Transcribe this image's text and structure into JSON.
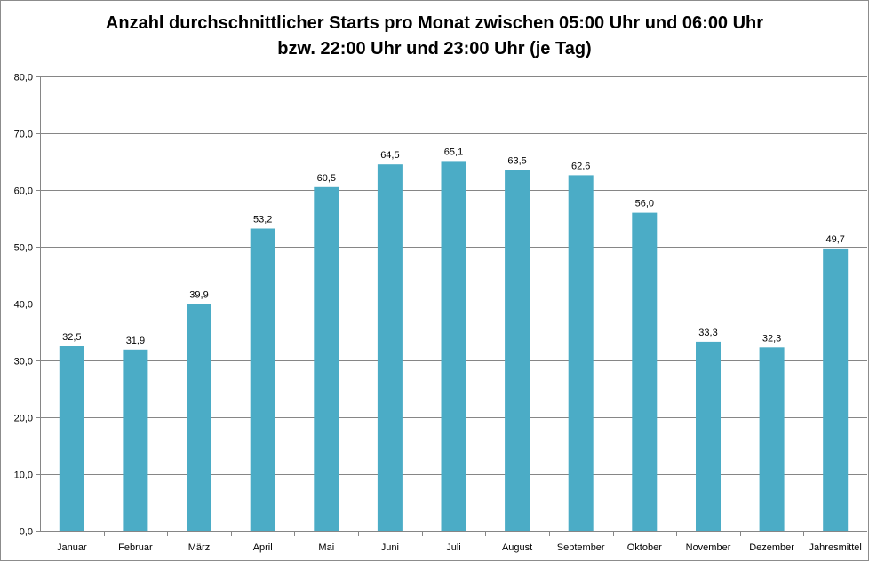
{
  "chart_data": {
    "type": "bar",
    "title_lines": [
      "Anzahl durchschnittlicher Starts pro Monat zwischen 05:00 Uhr und 06:00 Uhr",
      "bzw. 22:00 Uhr und 23:00 Uhr (je Tag)"
    ],
    "categories": [
      "Januar",
      "Februar",
      "März",
      "April",
      "Mai",
      "Juni",
      "Juli",
      "August",
      "September",
      "Oktober",
      "November",
      "Dezember",
      "Jahresmittel"
    ],
    "values": [
      32.5,
      31.9,
      39.9,
      53.2,
      60.5,
      64.5,
      65.1,
      63.5,
      62.6,
      56.0,
      33.3,
      32.3,
      49.7
    ],
    "value_labels": [
      "32,5",
      "31,9",
      "39,9",
      "53,2",
      "60,5",
      "64,5",
      "65,1",
      "63,5",
      "62,6",
      "56,0",
      "33,3",
      "32,3",
      "49,7"
    ],
    "xlabel": "",
    "ylabel": "",
    "ylim": [
      0,
      80
    ],
    "y_ticks": [
      0,
      10,
      20,
      30,
      40,
      50,
      60,
      70,
      80
    ],
    "y_tick_labels": [
      "0,0",
      "10,0",
      "20,0",
      "30,0",
      "40,0",
      "50,0",
      "60,0",
      "70,0",
      "80,0"
    ],
    "grid": true,
    "legend": "none",
    "bar_color": "#4BACC6",
    "grid_color": "#868686"
  }
}
